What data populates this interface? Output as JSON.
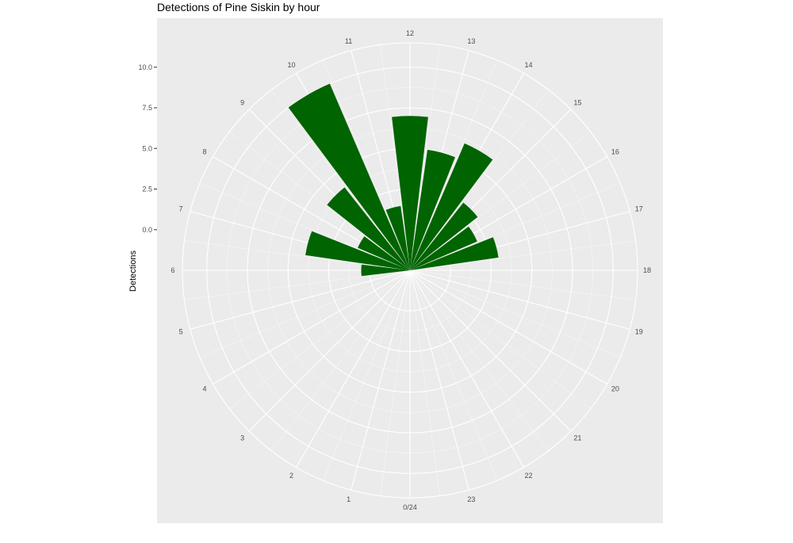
{
  "chart_data": {
    "type": "bar",
    "coord": "polar",
    "title": "Detections of Pine Siskin by hour",
    "xlabel": "",
    "ylabel": "Detections",
    "categories": [
      "0/24",
      "1",
      "2",
      "3",
      "4",
      "5",
      "6",
      "7",
      "8",
      "9",
      "10",
      "11",
      "12",
      "13",
      "14",
      "15",
      "16",
      "17",
      "18",
      "19",
      "20",
      "21",
      "22",
      "23"
    ],
    "bar_hours": [
      0,
      1,
      2,
      3,
      4,
      5,
      6,
      7,
      8,
      9,
      10,
      11,
      12,
      13,
      14,
      15,
      16,
      17,
      18,
      19,
      20,
      21,
      22,
      23
    ],
    "values": [
      0,
      0,
      0,
      0,
      0,
      0,
      0.5,
      4.0,
      1.0,
      4.0,
      10.0,
      1.5,
      7.0,
      5.0,
      6.0,
      2.8,
      2.0,
      3.0,
      0,
      0,
      0,
      0,
      0,
      0
    ],
    "series_color": "#006400",
    "yticks": [
      0.0,
      2.5,
      5.0,
      7.5,
      10.0
    ],
    "ytick_labels": [
      "0.0",
      "2.5",
      "5.0",
      "7.5",
      "10.0"
    ],
    "ylim": [
      -2.5,
      11.5
    ],
    "grid": true,
    "panel_background": "#ebebeb",
    "grid_color": "#ffffff"
  }
}
